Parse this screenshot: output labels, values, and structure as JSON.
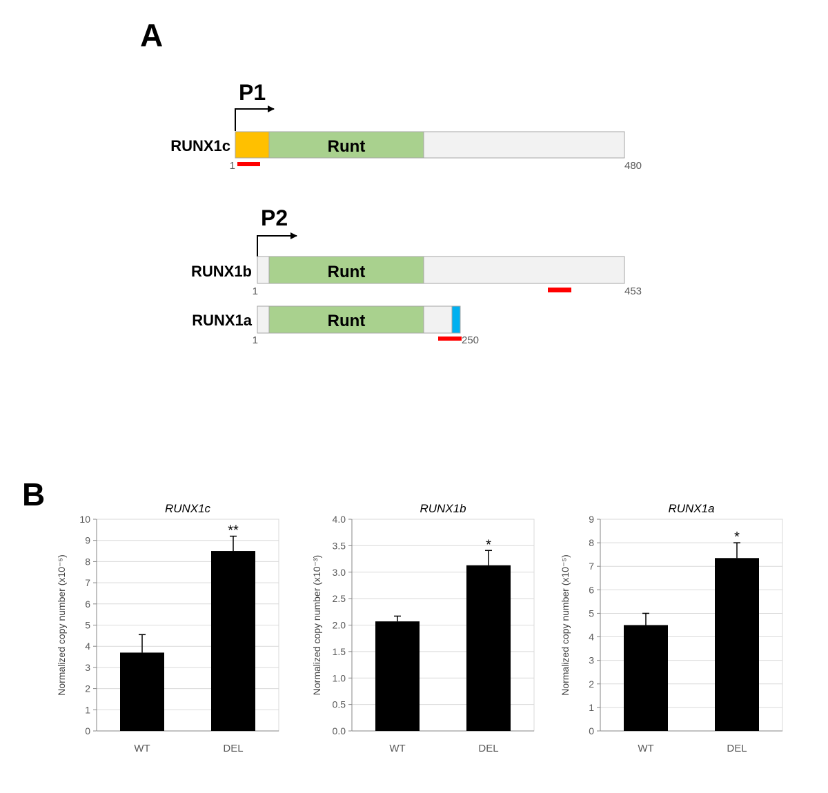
{
  "panel_a": {
    "letter": "A",
    "promoters": {
      "p1": "P1",
      "p2": "P2"
    },
    "isoforms": [
      {
        "name": "RUNX1c",
        "domain_label": "Runt",
        "start": "1",
        "end": "480",
        "promoter": "P1",
        "n_term_color": "#ffc000"
      },
      {
        "name": "RUNX1b",
        "domain_label": "Runt",
        "start": "1",
        "end": "453",
        "promoter": "P2"
      },
      {
        "name": "RUNX1a",
        "domain_label": "Runt",
        "start": "1",
        "end": "250",
        "promoter": "P2",
        "c_term_color": "#00b0f0"
      }
    ],
    "colors": {
      "runt": "#a9d18e",
      "body": "#f2f2f2",
      "primer": "#ff0000"
    }
  },
  "panel_b": {
    "letter": "B"
  },
  "chart_data": [
    {
      "type": "bar",
      "title": "RUNX1c",
      "categories": [
        "WT",
        "DEL"
      ],
      "values": [
        3.7,
        8.5
      ],
      "errors": [
        0.85,
        0.7
      ],
      "significance": [
        "",
        "**"
      ],
      "ylabel": "Normalized copy number (x10⁻⁵)",
      "ylim": [
        0,
        10
      ],
      "yticks": [
        0,
        1,
        2,
        3,
        4,
        5,
        6,
        7,
        8,
        9,
        10
      ],
      "tick_decimals": 0,
      "grid": true
    },
    {
      "type": "bar",
      "title": "RUNX1b",
      "categories": [
        "WT",
        "DEL"
      ],
      "values": [
        2.07,
        3.13
      ],
      "errors": [
        0.1,
        0.28
      ],
      "significance": [
        "",
        "*"
      ],
      "ylabel": "Normalized copy number (x10⁻³)",
      "ylim": [
        0,
        4
      ],
      "yticks": [
        0,
        0.5,
        1,
        1.5,
        2,
        2.5,
        3,
        3.5,
        4
      ],
      "tick_decimals": 1,
      "grid": true
    },
    {
      "type": "bar",
      "title": "RUNX1a",
      "categories": [
        "WT",
        "DEL"
      ],
      "values": [
        4.5,
        7.35
      ],
      "errors": [
        0.5,
        0.65
      ],
      "significance": [
        "",
        "*"
      ],
      "ylabel": "Normalized copy number (x10⁻⁵)",
      "ylim": [
        0,
        9
      ],
      "yticks": [
        0,
        1,
        2,
        3,
        4,
        5,
        6,
        7,
        8,
        9
      ],
      "tick_decimals": 0,
      "grid": true
    }
  ]
}
